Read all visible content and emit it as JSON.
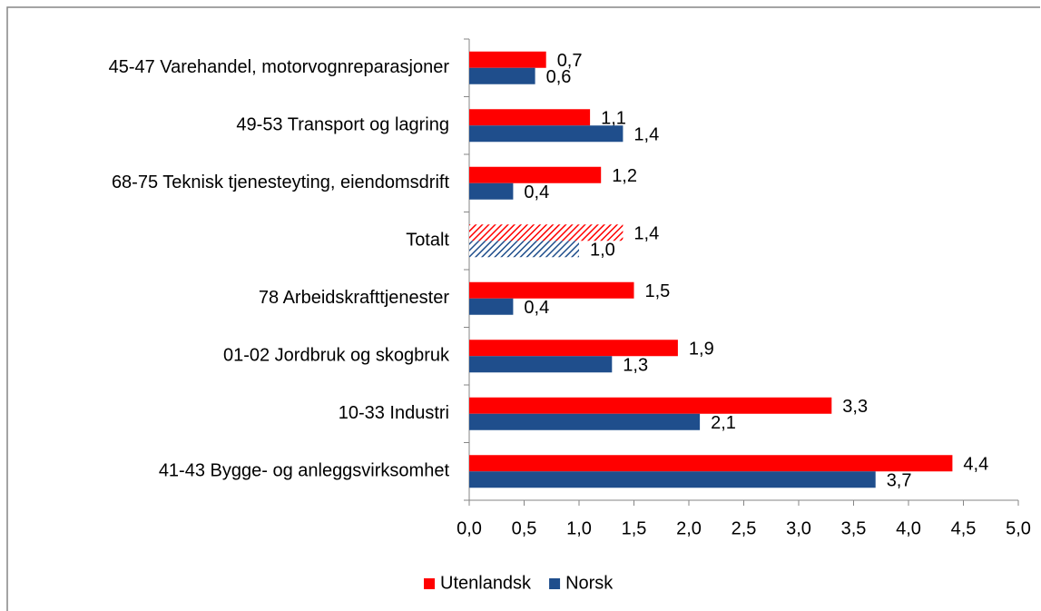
{
  "chart_data": {
    "type": "barh",
    "categories": [
      "45-47 Varehandel, motorvognreparasjoner",
      "49-53 Transport og lagring",
      "68-75 Teknisk tjenesteyting, eiendomsdrift",
      "Totalt",
      "78 Arbeidskrafttjenester",
      "01-02 Jordbruk og skogbruk",
      "10-33 Industri",
      "41-43 Bygge- og anleggsvirksomhet"
    ],
    "series": [
      {
        "name": "Utenlandsk",
        "color": "#ff0000",
        "values": [
          0.7,
          1.1,
          1.2,
          1.4,
          1.5,
          1.9,
          3.3,
          4.4
        ],
        "value_labels": [
          "0,7",
          "1,1",
          "1,2",
          "1,4",
          "1,5",
          "1,9",
          "3,3",
          "4,4"
        ]
      },
      {
        "name": "Norsk",
        "color": "#1f4e8c",
        "values": [
          0.6,
          1.4,
          0.4,
          1.0,
          0.4,
          1.3,
          2.1,
          3.7
        ],
        "value_labels": [
          "0,6",
          "1,4",
          "0,4",
          "1,0",
          "0,4",
          "1,3",
          "2,1",
          "3,7"
        ]
      }
    ],
    "hatched": [
      3
    ],
    "xlim": [
      0,
      5
    ],
    "xticks": [
      {
        "value": 0,
        "label": "0,0"
      },
      {
        "value": 0.5,
        "label": "0,5"
      },
      {
        "value": 1,
        "label": "1,0"
      },
      {
        "value": 1.5,
        "label": "1,5"
      },
      {
        "value": 2,
        "label": "2,0"
      },
      {
        "value": 2.5,
        "label": "2,5"
      },
      {
        "value": 3,
        "label": "3,0"
      },
      {
        "value": 3.5,
        "label": "3,5"
      },
      {
        "value": 4,
        "label": "4,0"
      },
      {
        "value": 4.5,
        "label": "4,5"
      },
      {
        "value": 5,
        "label": "5,0"
      }
    ],
    "legend": "bottom"
  }
}
